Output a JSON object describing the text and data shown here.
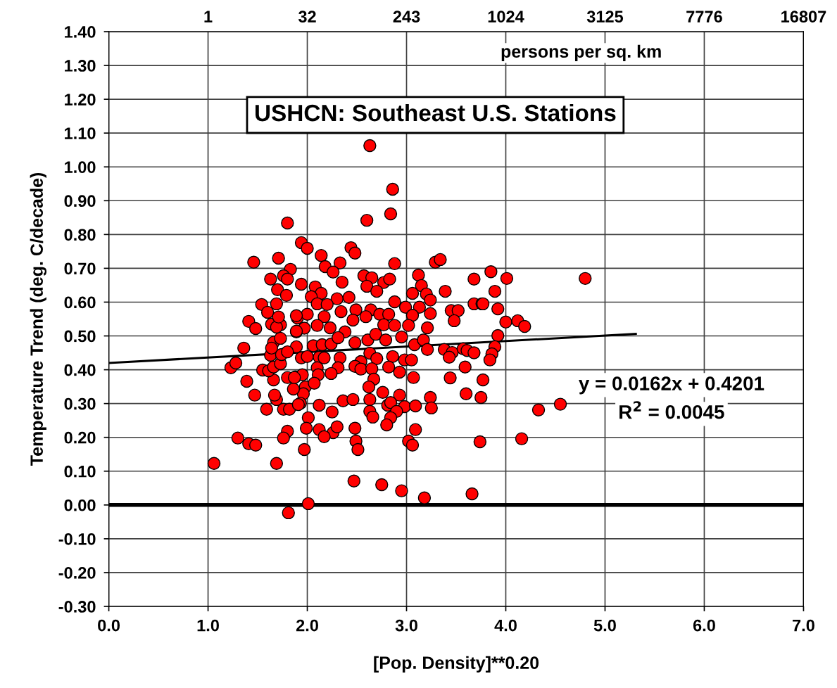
{
  "chart_data": {
    "type": "scatter",
    "title": "USHCN: Southeast U.S. Stations",
    "xlabel": "[Pop. Density]**0.20",
    "ylabel": "Temperature Trend (deg. C/decade)",
    "x2label": "persons per sq. km",
    "annotations": [
      "1",
      "32",
      "243",
      "1024",
      "3125",
      "7776",
      "16807",
      "y = 0.0162x + 0.4201",
      "R$^{2}$ = 0.0045"
    ],
    "xlim": [
      0,
      7
    ],
    "ylim": [
      -0.3,
      1.4
    ],
    "xticks": [
      {
        "value": 0,
        "label": "0.0"
      },
      {
        "value": 1,
        "label": "1.0"
      },
      {
        "value": 2,
        "label": "2.0"
      },
      {
        "value": 3,
        "label": "3.0"
      },
      {
        "value": 4,
        "label": "4.0"
      },
      {
        "value": 5,
        "label": "5.0"
      },
      {
        "value": 6,
        "label": "6.0"
      },
      {
        "value": 7,
        "label": "7.0"
      }
    ],
    "yticks": [
      {
        "value": -0.3,
        "label": "-0.30"
      },
      {
        "value": -0.2,
        "label": "-0.20"
      },
      {
        "value": -0.1,
        "label": "-0.10"
      },
      {
        "value": 0,
        "label": "0.00"
      },
      {
        "value": 0.1,
        "label": "0.10"
      },
      {
        "value": 0.2,
        "label": "0.20"
      },
      {
        "value": 0.3,
        "label": "0.30"
      },
      {
        "value": 0.4,
        "label": "0.40"
      },
      {
        "value": 0.5,
        "label": "0.50"
      },
      {
        "value": 0.6,
        "label": "0.60"
      },
      {
        "value": 0.7,
        "label": "0.70"
      },
      {
        "value": 0.8,
        "label": "0.80"
      },
      {
        "value": 0.9,
        "label": "0.90"
      },
      {
        "value": 1.0,
        "label": "1.00"
      },
      {
        "value": 1.1,
        "label": "1.10"
      },
      {
        "value": 1.2,
        "label": "1.20"
      },
      {
        "value": 1.3,
        "label": "1.30"
      },
      {
        "value": 1.4,
        "label": "1.40"
      }
    ],
    "grid": true,
    "marker": "circle",
    "ref_lines": [
      {
        "axis": "y",
        "value": 0,
        "label": null,
        "color": "#000000"
      }
    ],
    "series": [
      {
        "type": "scatter",
        "color": "#ff0000",
        "x": [
          1.06,
          2.63,
          2.86,
          2.84,
          2.6,
          1.8,
          1.46,
          1.71,
          1.83,
          1.76,
          1.8,
          1.63,
          1.7,
          1.79,
          1.54,
          1.69,
          1.94,
          2.0,
          2.14,
          2.44,
          2.48,
          2.33,
          2.18,
          2.26,
          2.88,
          3.29,
          3.34,
          1.94,
          2.08,
          2.14,
          2.35,
          2.57,
          2.65,
          2.6,
          2.77,
          2.83,
          2.7,
          2.3,
          2.42,
          2.04,
          2.1,
          2.2,
          2.88,
          2.99,
          3.12,
          3.15,
          3.06,
          3.2,
          3.24,
          3.39,
          3.13,
          3.24,
          3.45,
          3.52,
          3.68,
          3.68,
          3.76,
          2.34,
          2.49,
          2.64,
          2.73,
          2.82,
          3.06,
          3.85,
          4.01,
          4.8,
          3.89,
          3.77,
          3.92,
          4.0,
          4.12,
          4.19,
          3.92,
          3.89,
          3.86,
          3.84,
          3.77,
          3.75,
          4.33,
          4.55,
          4.16,
          3.74,
          1.9,
          2.0,
          2.17,
          1.89,
          1.97,
          2.1,
          2.23,
          2.38,
          2.46,
          2.59,
          2.77,
          2.88,
          3.02,
          3.21,
          3.48,
          1.89,
          2.06,
          2.15,
          2.24,
          2.31,
          2.48,
          2.61,
          2.69,
          2.79,
          2.95,
          3.08,
          3.17,
          3.21,
          3.38,
          3.46,
          3.57,
          3.61,
          3.68,
          3.43,
          3.59,
          3.44,
          1.94,
          2.0,
          2.12,
          2.17,
          2.33,
          2.54,
          2.63,
          2.7,
          2.86,
          2.98,
          3.05,
          2.82,
          2.93,
          1.88,
          1.95,
          2.1,
          2.11,
          2.31,
          2.24,
          2.48,
          2.54,
          2.65,
          2.67,
          3.07,
          1.98,
          1.96,
          2.07,
          2.62,
          2.76,
          2.93,
          3.24,
          3.6,
          1.93,
          2.12,
          2.36,
          2.46,
          2.63,
          2.81,
          2.84,
          2.98,
          3.09,
          3.25,
          2.25,
          2.63,
          2.66,
          2.9,
          2.84,
          2.8,
          2.01,
          1.99,
          2.12,
          2.26,
          2.3,
          2.17,
          2.48,
          3.09,
          2.49,
          2.51,
          3.02,
          3.06,
          1.97,
          2.47,
          2.75,
          2.95,
          3.18,
          3.66,
          2.01,
          1.81,
          1.3,
          1.41,
          1.48,
          1.69,
          1.8,
          1.76,
          1.59,
          1.76,
          1.82,
          1.69,
          1.67,
          1.47,
          1.39,
          1.66,
          1.8,
          1.86,
          1.23,
          1.28,
          1.55,
          1.61,
          1.66,
          1.73,
          1.36,
          1.63,
          1.74,
          1.66,
          1.73,
          1.64,
          1.41,
          1.48,
          1.64,
          1.73,
          1.69,
          1.6,
          1.71,
          1.89,
          1.8,
          1.87,
          1.91,
          1.89
        ],
        "values": [
          0.123,
          1.063,
          0.934,
          0.861,
          0.842,
          0.834,
          0.718,
          0.73,
          0.697,
          0.678,
          0.668,
          0.668,
          0.637,
          0.62,
          0.593,
          0.595,
          0.776,
          0.759,
          0.738,
          0.761,
          0.745,
          0.716,
          0.705,
          0.689,
          0.714,
          0.718,
          0.726,
          0.653,
          0.645,
          0.626,
          0.659,
          0.678,
          0.672,
          0.647,
          0.658,
          0.668,
          0.632,
          0.61,
          0.614,
          0.616,
          0.595,
          0.593,
          0.601,
          0.585,
          0.68,
          0.649,
          0.626,
          0.624,
          0.606,
          0.632,
          0.585,
          0.566,
          0.575,
          0.575,
          0.668,
          0.595,
          0.595,
          0.572,
          0.577,
          0.577,
          0.564,
          0.564,
          0.561,
          0.69,
          0.67,
          0.67,
          0.632,
          0.595,
          0.58,
          0.541,
          0.545,
          0.528,
          0.501,
          0.468,
          0.447,
          0.429,
          0.37,
          0.318,
          0.281,
          0.298,
          0.196,
          0.187,
          0.553,
          0.564,
          0.557,
          0.512,
          0.523,
          0.531,
          0.524,
          0.512,
          0.547,
          0.557,
          0.533,
          0.531,
          0.531,
          0.524,
          0.545,
          0.468,
          0.471,
          0.474,
          0.476,
          0.495,
          0.48,
          0.488,
          0.505,
          0.488,
          0.497,
          0.474,
          0.488,
          0.46,
          0.46,
          0.451,
          0.462,
          0.457,
          0.45,
          0.437,
          0.408,
          0.376,
          0.435,
          0.439,
          0.437,
          0.435,
          0.435,
          0.424,
          0.449,
          0.433,
          0.439,
          0.429,
          0.429,
          0.408,
          0.393,
          0.379,
          0.385,
          0.406,
          0.385,
          0.406,
          0.389,
          0.41,
          0.402,
          0.403,
          0.372,
          0.377,
          0.349,
          0.329,
          0.36,
          0.349,
          0.333,
          0.325,
          0.318,
          0.329,
          0.301,
          0.295,
          0.308,
          0.312,
          0.312,
          0.295,
          0.303,
          0.291,
          0.293,
          0.287,
          0.275,
          0.277,
          0.26,
          0.277,
          0.258,
          0.237,
          0.258,
          0.227,
          0.223,
          0.214,
          0.231,
          0.202,
          0.227,
          0.223,
          0.189,
          0.164,
          0.189,
          0.177,
          0.164,
          0.071,
          0.06,
          0.042,
          0.021,
          0.033,
          0.004,
          -0.023,
          0.198,
          0.181,
          0.177,
          0.123,
          0.218,
          0.198,
          0.283,
          0.283,
          0.283,
          0.312,
          0.325,
          0.325,
          0.366,
          0.37,
          0.377,
          0.343,
          0.406,
          0.42,
          0.399,
          0.397,
          0.408,
          0.418,
          0.464,
          0.443,
          0.445,
          0.481,
          0.493,
          0.464,
          0.543,
          0.522,
          0.535,
          0.533,
          0.526,
          0.57,
          0.556,
          0.514,
          0.453,
          0.377,
          0.297,
          0.56
        ]
      },
      {
        "type": "line",
        "color": "#000000",
        "marker": "none",
        "x": [
          0,
          5.31
        ],
        "values": [
          0.42,
          0.506
        ]
      }
    ]
  }
}
